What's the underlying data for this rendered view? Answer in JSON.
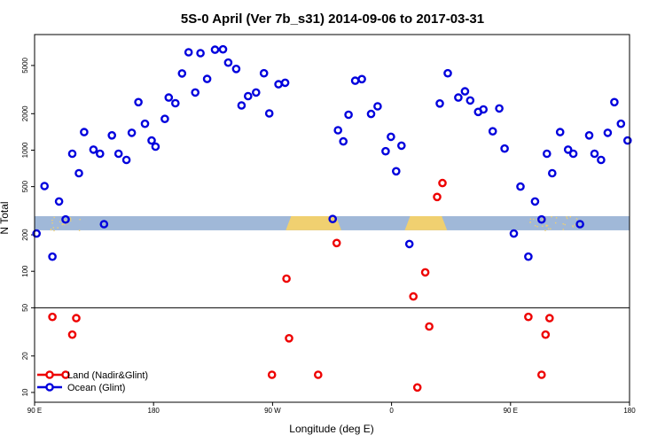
{
  "chart_data": {
    "type": "scatter",
    "title": "5S-0 April (Ver 7b_s31)   2014-09-06 to 2017-03-31",
    "xlabel": "Longitude (deg E)",
    "ylabel": "N Total",
    "y_scale": "log",
    "ylim": [
      8.3,
      9000
    ],
    "x_ticks": [
      {
        "value": 0,
        "label": "90 E"
      },
      {
        "value": 90,
        "label": "180"
      },
      {
        "value": 180,
        "label": "90 W"
      },
      {
        "value": 270,
        "label": "0"
      },
      {
        "value": 360,
        "label": "90 E"
      },
      {
        "value": 450,
        "label": "180"
      }
    ],
    "y_ticks": [
      10,
      20,
      50,
      100,
      200,
      500,
      1000,
      2000,
      5000
    ],
    "reference_line_y": 50,
    "band": {
      "y_low": 218,
      "y_high": 285,
      "color": "#a0b8d8",
      "highlight_color": "#f0d070"
    },
    "band_highlights": [
      {
        "x_start": 10,
        "x_end": 35,
        "style": "sparse"
      },
      {
        "x_start": 190,
        "x_end": 232,
        "style": "solid"
      },
      {
        "x_start": 280,
        "x_end": 312,
        "style": "solid"
      },
      {
        "x_start": 373,
        "x_end": 410,
        "style": "sparse"
      }
    ],
    "legend_position": "bottom-left",
    "series": [
      {
        "name": "Land (Nadir&Glint)",
        "color": "#ee0000",
        "points": [
          [
            13.5,
            42
          ],
          [
            23.5,
            14
          ],
          [
            28.5,
            30
          ],
          [
            31.5,
            41
          ],
          [
            179.5,
            14
          ],
          [
            190.5,
            87
          ],
          [
            192.5,
            28
          ],
          [
            214.5,
            14
          ],
          [
            228.5,
            171
          ],
          [
            286.5,
            62
          ],
          [
            289.5,
            11
          ],
          [
            295.5,
            98
          ],
          [
            298.5,
            35
          ],
          [
            304.5,
            411
          ],
          [
            308.5,
            535
          ],
          [
            373.5,
            42
          ],
          [
            383.5,
            14
          ],
          [
            386.5,
            30
          ],
          [
            389.5,
            41
          ]
        ]
      },
      {
        "name": "Ocean (Glint)",
        "color": "#0000dd",
        "points": [
          [
            1.5,
            205
          ],
          [
            7.5,
            505
          ],
          [
            13.5,
            132
          ],
          [
            18.5,
            377
          ],
          [
            23.5,
            268
          ],
          [
            28.5,
            935
          ],
          [
            33.5,
            645
          ],
          [
            37.5,
            1410
          ],
          [
            44.5,
            1010
          ],
          [
            49.5,
            935
          ],
          [
            52.5,
            245
          ],
          [
            58.5,
            1325
          ],
          [
            63.5,
            935
          ],
          [
            69.5,
            830
          ],
          [
            73.5,
            1390
          ],
          [
            78.5,
            2490
          ],
          [
            83.5,
            1650
          ],
          [
            88.5,
            1200
          ],
          [
            91.5,
            1070
          ],
          [
            98.5,
            1810
          ],
          [
            101.5,
            2720
          ],
          [
            106.5,
            2440
          ],
          [
            111.5,
            4300
          ],
          [
            116.5,
            6430
          ],
          [
            121.5,
            2990
          ],
          [
            125.5,
            6320
          ],
          [
            130.5,
            3870
          ],
          [
            136.5,
            6750
          ],
          [
            142.5,
            6790
          ],
          [
            146.5,
            5280
          ],
          [
            152.5,
            4680
          ],
          [
            156.5,
            2340
          ],
          [
            161.5,
            2790
          ],
          [
            167.5,
            2990
          ],
          [
            173.5,
            4310
          ],
          [
            177.5,
            2010
          ],
          [
            184.5,
            3500
          ],
          [
            189.5,
            3600
          ],
          [
            225.5,
            270
          ],
          [
            229.5,
            1460
          ],
          [
            233.5,
            1180
          ],
          [
            237.5,
            1960
          ],
          [
            242.5,
            3740
          ],
          [
            247.5,
            3860
          ],
          [
            254.5,
            1990
          ],
          [
            259.5,
            2300
          ],
          [
            265.5,
            980
          ],
          [
            269.5,
            1290
          ],
          [
            273.5,
            670
          ],
          [
            277.5,
            1090
          ],
          [
            283.5,
            168
          ],
          [
            306.5,
            2430
          ],
          [
            312.5,
            4310
          ],
          [
            320.5,
            2720
          ],
          [
            325.5,
            3060
          ],
          [
            329.5,
            2570
          ],
          [
            335.5,
            2070
          ],
          [
            339.5,
            2170
          ],
          [
            346.5,
            1430
          ],
          [
            351.5,
            2210
          ],
          [
            355.5,
            1030
          ],
          [
            362.5,
            205
          ],
          [
            367.5,
            500
          ],
          [
            373.5,
            132
          ],
          [
            378.5,
            377
          ],
          [
            383.5,
            268
          ],
          [
            387.5,
            935
          ],
          [
            391.5,
            645
          ],
          [
            397.5,
            1410
          ],
          [
            403.5,
            1010
          ],
          [
            407.5,
            935
          ],
          [
            412.5,
            245
          ],
          [
            419.5,
            1325
          ],
          [
            423.5,
            935
          ],
          [
            428.5,
            830
          ],
          [
            433.5,
            1390
          ],
          [
            438.5,
            2490
          ],
          [
            443.5,
            1650
          ],
          [
            448.5,
            1200
          ]
        ]
      }
    ]
  }
}
